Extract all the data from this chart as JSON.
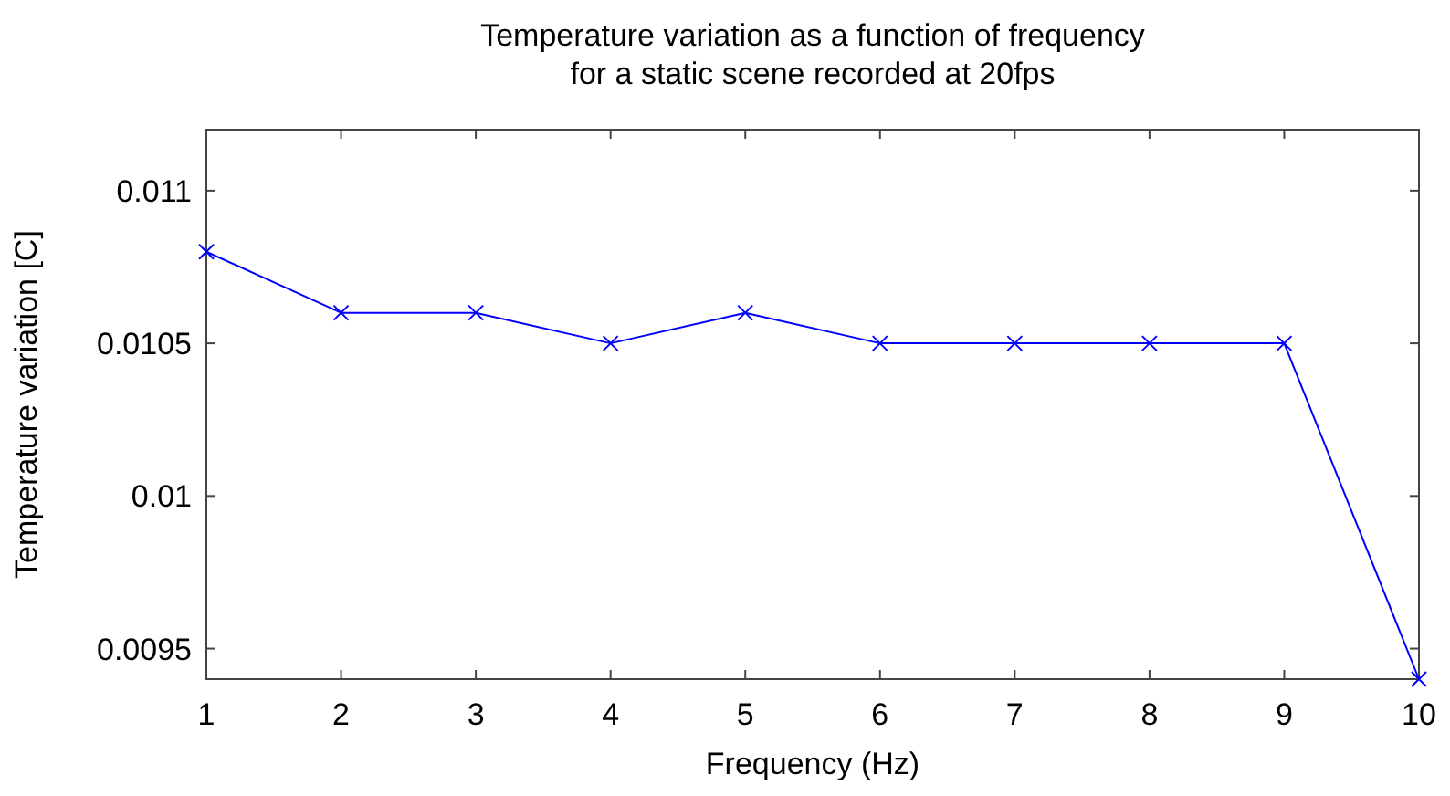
{
  "chart_data": {
    "type": "line",
    "title": "Temperature variation as a function of frequency\nfor a static scene recorded at 20fps",
    "xlabel": "Frequency (Hz)",
    "ylabel": "Temperature variation [C]",
    "x": [
      1,
      2,
      3,
      4,
      5,
      6,
      7,
      8,
      9,
      10
    ],
    "series": [
      {
        "color": "#0000ff",
        "values": [
          0.0108,
          0.0106,
          0.0106,
          0.0105,
          0.0106,
          0.0105,
          0.0105,
          0.0105,
          0.0105,
          0.0094
        ]
      }
    ],
    "xlim": [
      1,
      10
    ],
    "xticks": [
      1,
      2,
      3,
      4,
      5,
      6,
      7,
      8,
      9,
      10
    ],
    "ylim": [
      0.0094,
      0.0112
    ],
    "yticks": [
      0.0095,
      0.01,
      0.0105,
      0.011
    ],
    "marker": "cross",
    "line_style": "solid"
  }
}
